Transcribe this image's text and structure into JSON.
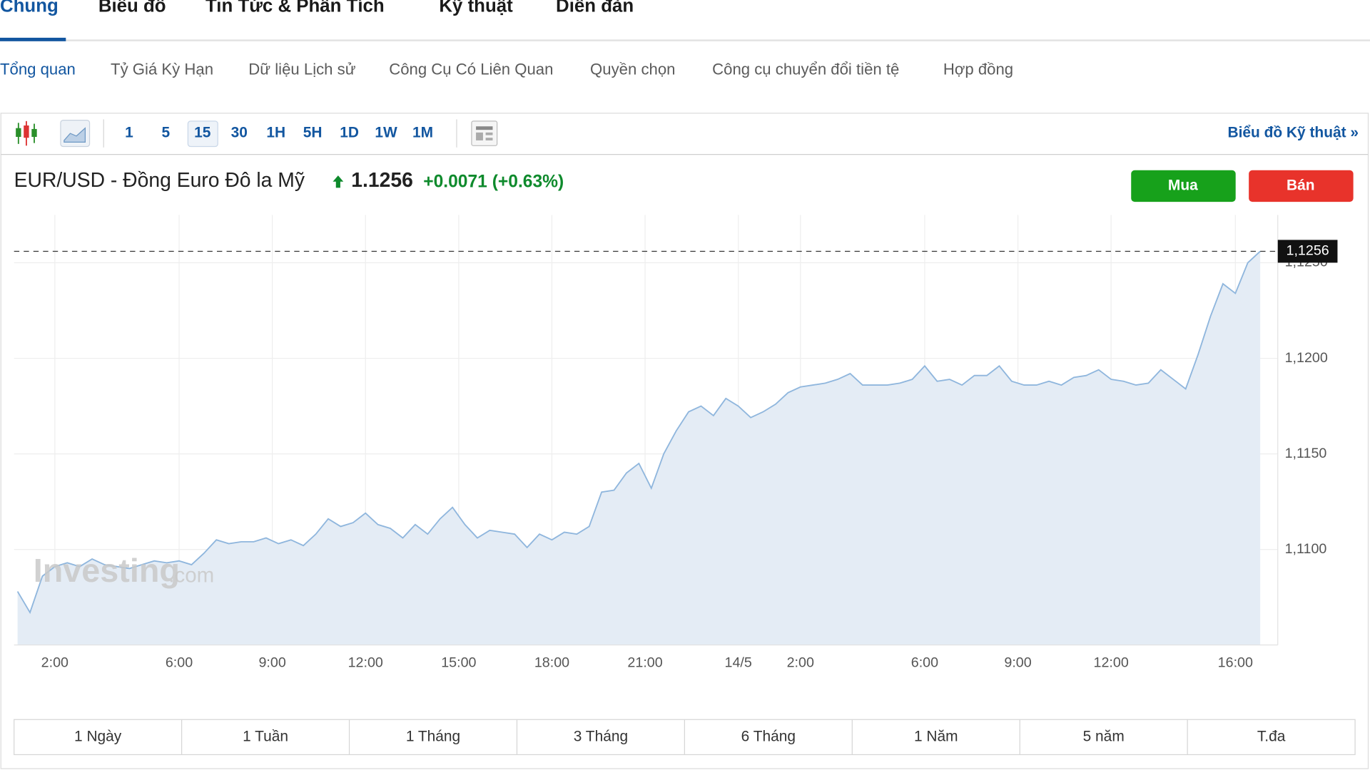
{
  "tabs": [
    "Chung",
    "Biểu đồ",
    "Tin Tức & Phân Tích",
    "Kỹ thuật",
    "Diễn đàn"
  ],
  "subtabs": [
    "Tổng quan",
    "Tỷ Giá Kỳ Hạn",
    "Dữ liệu Lịch sử",
    "Công Cụ Có Liên Quan",
    "Quyền chọn",
    "Công cụ chuyển đổi tiền tệ",
    "Hợp đồng"
  ],
  "intervals": [
    "1",
    "5",
    "15",
    "30",
    "1H",
    "5H",
    "1D",
    "1W",
    "1M"
  ],
  "technical_link": "Biểu đồ Kỹ thuật »",
  "quote": {
    "name": "EUR/USD - Đồng Euro Đô la Mỹ",
    "price": "1.1256",
    "change": "+0.0071 (+0.63%)"
  },
  "buttons": [
    "Mua",
    "Bán"
  ],
  "watermark": [
    "Investing",
    ".com"
  ],
  "ranges": [
    "1 Ngày",
    "1 Tuần",
    "1 Tháng",
    "3 Tháng",
    "6 Tháng",
    "1 Năm",
    "5 năm",
    "T.đa"
  ],
  "chart_data": {
    "type": "area",
    "color": "#8fb6dd",
    "fill": "#e4ecf5",
    "x": [
      0,
      2,
      4,
      6,
      8,
      10,
      12,
      14,
      16,
      18,
      20,
      22,
      24,
      26,
      28,
      30,
      32,
      34,
      36,
      38,
      40,
      42,
      44,
      46,
      48,
      50,
      52,
      54,
      56,
      58,
      60,
      62,
      64,
      66,
      68,
      70,
      72,
      74,
      76,
      78,
      80,
      82,
      84,
      86,
      88,
      90,
      92,
      94,
      96,
      98,
      100,
      102,
      104,
      106,
      108,
      110,
      112,
      114,
      116,
      118,
      120,
      122,
      124,
      126,
      128,
      130,
      132,
      134,
      136,
      138,
      140,
      142,
      144,
      146,
      148,
      150,
      152,
      154,
      156,
      158,
      160,
      162,
      164,
      166,
      168,
      170,
      172,
      174,
      176,
      178,
      180,
      182,
      184,
      186,
      188,
      190,
      192,
      194,
      196,
      198,
      200
    ],
    "values": [
      1.1078,
      1.1067,
      1.1086,
      1.1091,
      1.1093,
      1.1091,
      1.1095,
      1.1092,
      1.1091,
      1.109,
      1.1092,
      1.1094,
      1.1093,
      1.1094,
      1.1092,
      1.1098,
      1.1105,
      1.1103,
      1.1104,
      1.1104,
      1.1106,
      1.1103,
      1.1105,
      1.1102,
      1.1108,
      1.1116,
      1.1112,
      1.1114,
      1.1119,
      1.1113,
      1.1111,
      1.1106,
      1.1113,
      1.1108,
      1.1116,
      1.1122,
      1.1113,
      1.1106,
      1.111,
      1.1109,
      1.1108,
      1.1101,
      1.1108,
      1.1105,
      1.1109,
      1.1108,
      1.1112,
      1.113,
      1.1131,
      1.114,
      1.1145,
      1.1132,
      1.115,
      1.1162,
      1.1172,
      1.1175,
      1.117,
      1.1179,
      1.1175,
      1.1169,
      1.1172,
      1.1176,
      1.1182,
      1.1185,
      1.1186,
      1.1187,
      1.1189,
      1.1192,
      1.1186,
      1.1186,
      1.1186,
      1.1187,
      1.1189,
      1.1196,
      1.1188,
      1.1189,
      1.1186,
      1.1191,
      1.1191,
      1.1196,
      1.1188,
      1.1186,
      1.1186,
      1.1188,
      1.1186,
      1.119,
      1.1191,
      1.1194,
      1.1189,
      1.1188,
      1.1186,
      1.1187,
      1.1194,
      1.1189,
      1.1184,
      1.1202,
      1.1222,
      1.1239,
      1.1234,
      1.125,
      1.1256
    ],
    "xlim": [
      0,
      200
    ],
    "ylim": [
      1.105,
      1.1275
    ],
    "xticks": [
      {
        "value": 6,
        "label": "2:00"
      },
      {
        "value": 26,
        "label": "6:00"
      },
      {
        "value": 41,
        "label": "9:00"
      },
      {
        "value": 56,
        "label": "12:00"
      },
      {
        "value": 71,
        "label": "15:00"
      },
      {
        "value": 86,
        "label": "18:00"
      },
      {
        "value": 101,
        "label": "21:00"
      },
      {
        "value": 116,
        "label": "14/5"
      },
      {
        "value": 126,
        "label": "2:00"
      },
      {
        "value": 146,
        "label": "6:00"
      },
      {
        "value": 161,
        "label": "9:00"
      },
      {
        "value": 176,
        "label": "12:00"
      },
      {
        "value": 196,
        "label": "16:00"
      }
    ],
    "yticks": [
      {
        "value": 1.11,
        "label": "1,1100"
      },
      {
        "value": 1.115,
        "label": "1,1150"
      },
      {
        "value": 1.12,
        "label": "1,1200"
      },
      {
        "value": 1.125,
        "label": "1,1250"
      }
    ],
    "last_value": {
      "value": 1.1256,
      "label": "1,1256"
    },
    "grid": true
  }
}
